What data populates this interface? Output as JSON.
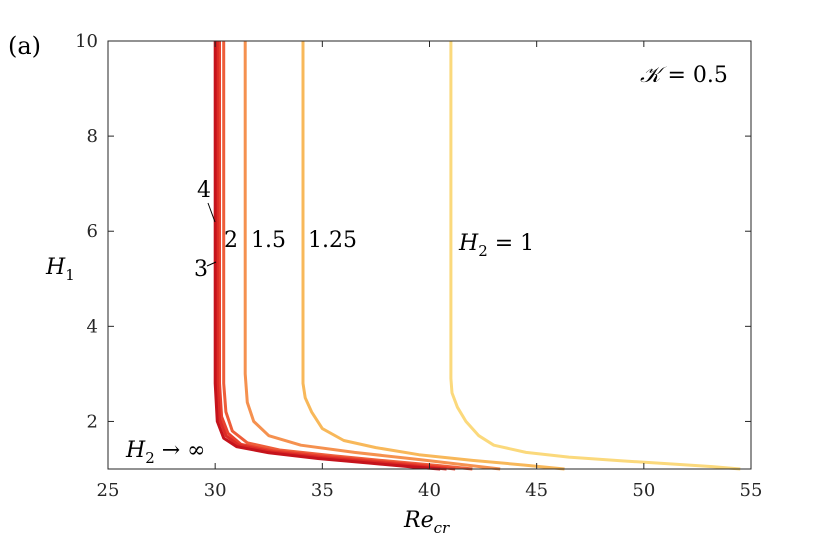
{
  "panel_label": "(a)",
  "annotation": "𝒦 = 0.5",
  "chart_data": {
    "type": "line",
    "xlabel": "Re_cr",
    "ylabel": "H_1",
    "xlim": [
      25,
      55
    ],
    "ylim": [
      1,
      10
    ],
    "xticks": [
      25,
      30,
      35,
      40,
      45,
      50,
      55
    ],
    "yticks": [
      2,
      4,
      6,
      8,
      10
    ],
    "grid": false,
    "series": [
      {
        "name": "H2 = 1",
        "label_text": "H_2 = 1",
        "color": "#fbd97c",
        "x": [
          41.0,
          41.0,
          41.0,
          41.05,
          41.3,
          41.7,
          42.3,
          43.0,
          44.5,
          46.5,
          49.0,
          51.5,
          53.2,
          54.5
        ],
        "y": [
          10.0,
          6.0,
          2.9,
          2.6,
          2.3,
          2.0,
          1.7,
          1.5,
          1.35,
          1.25,
          1.17,
          1.1,
          1.05,
          1.0
        ]
      },
      {
        "name": "H2 = 1.25",
        "label_text": "1.25",
        "color": "#f8b85a",
        "x": [
          34.1,
          34.1,
          34.1,
          34.2,
          34.5,
          35.0,
          36.0,
          37.5,
          39.5,
          42.0,
          44.5,
          46.3
        ],
        "y": [
          10.0,
          6.0,
          2.8,
          2.5,
          2.2,
          1.85,
          1.6,
          1.45,
          1.3,
          1.18,
          1.08,
          1.0
        ]
      },
      {
        "name": "H2 = 1.5",
        "label_text": "1.5",
        "color": "#f5914f",
        "x": [
          31.4,
          31.4,
          31.4,
          31.5,
          31.8,
          32.5,
          34.0,
          36.5,
          39.5,
          41.8,
          43.3
        ],
        "y": [
          10.0,
          6.0,
          3.0,
          2.4,
          2.0,
          1.7,
          1.5,
          1.35,
          1.2,
          1.08,
          1.0
        ]
      },
      {
        "name": "H2 = 2",
        "label_text": "2",
        "color": "#ee5e3a",
        "x": [
          30.4,
          30.4,
          30.4,
          30.5,
          30.8,
          31.5,
          33.0,
          35.5,
          38.0,
          40.5,
          42.0
        ],
        "y": [
          10.0,
          6.0,
          2.8,
          2.2,
          1.8,
          1.55,
          1.4,
          1.28,
          1.17,
          1.07,
          1.0
        ]
      },
      {
        "name": "H2 = 3",
        "label_text": "3",
        "color": "#e8402e",
        "x": [
          30.2,
          30.2,
          30.2,
          30.3,
          30.6,
          31.2,
          32.7,
          35.2,
          37.8,
          40.0,
          41.2
        ],
        "y": [
          10.0,
          6.0,
          2.8,
          2.1,
          1.75,
          1.52,
          1.38,
          1.26,
          1.15,
          1.06,
          1.0
        ]
      },
      {
        "name": "H2 = 4",
        "label_text": "4",
        "color": "#dc2a25",
        "x": [
          30.1,
          30.1,
          30.1,
          30.2,
          30.5,
          31.1,
          32.6,
          35.0,
          37.5,
          39.6,
          40.8
        ],
        "y": [
          10.0,
          6.0,
          2.8,
          2.05,
          1.7,
          1.5,
          1.36,
          1.24,
          1.14,
          1.05,
          1.0
        ]
      },
      {
        "name": "H2 → ∞",
        "label_text": "H_2 → ∞",
        "color": "#c5131c",
        "x": [
          30.0,
          30.0,
          30.0,
          30.1,
          30.4,
          31.0,
          32.5,
          34.8,
          37.3,
          39.3,
          40.5
        ],
        "y": [
          10.0,
          6.0,
          2.8,
          2.0,
          1.65,
          1.47,
          1.34,
          1.22,
          1.12,
          1.04,
          1.0
        ]
      }
    ]
  }
}
